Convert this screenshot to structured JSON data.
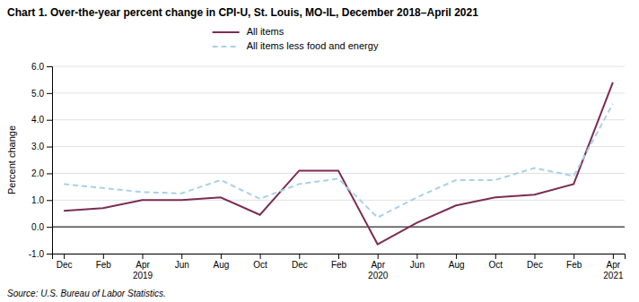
{
  "chart_data": {
    "type": "line",
    "title": "Chart 1. Over-the-year percent change in CPI-U, St. Louis, MO-IL, December 2018–April 2021",
    "y_label": "Percent change",
    "annotations": [
      "Source: U.S. Bureau of Labor Statistics."
    ],
    "categories": [
      "Dec",
      "Feb",
      "Apr\n2019",
      "Jun",
      "Aug",
      "Oct",
      "Dec",
      "Feb",
      "Apr\n2020",
      "Jun",
      "Aug",
      "Oct",
      "Dec",
      "Feb",
      "Apr\n2021"
    ],
    "series": [
      {
        "name": "All items",
        "color": "#7b2d52",
        "line_style": "solid",
        "values": [
          0.6,
          0.7,
          1.0,
          1.0,
          1.1,
          0.45,
          2.1,
          2.1,
          -0.65,
          0.15,
          0.8,
          1.1,
          1.2,
          1.6,
          5.4
        ]
      },
      {
        "name": "All items less food and energy",
        "color": "#a8d0e8",
        "line_style": "dashed",
        "values": [
          1.6,
          1.45,
          1.3,
          1.25,
          1.75,
          1.05,
          1.6,
          1.8,
          0.35,
          1.1,
          1.75,
          1.75,
          2.2,
          1.9,
          4.6
        ]
      }
    ],
    "ylim": [
      -1.0,
      6.0
    ],
    "yticks": [
      {
        "value": -1.0,
        "label": "-1.0"
      },
      {
        "value": 0.0,
        "label": "0.0"
      },
      {
        "value": 1.0,
        "label": "1.0"
      },
      {
        "value": 2.0,
        "label": "2.0"
      },
      {
        "value": 3.0,
        "label": "3.0"
      },
      {
        "value": 4.0,
        "label": "4.0"
      },
      {
        "value": 5.0,
        "label": "5.0"
      },
      {
        "value": 6.0,
        "label": "6.0"
      }
    ],
    "grid": true,
    "legend": "top"
  }
}
